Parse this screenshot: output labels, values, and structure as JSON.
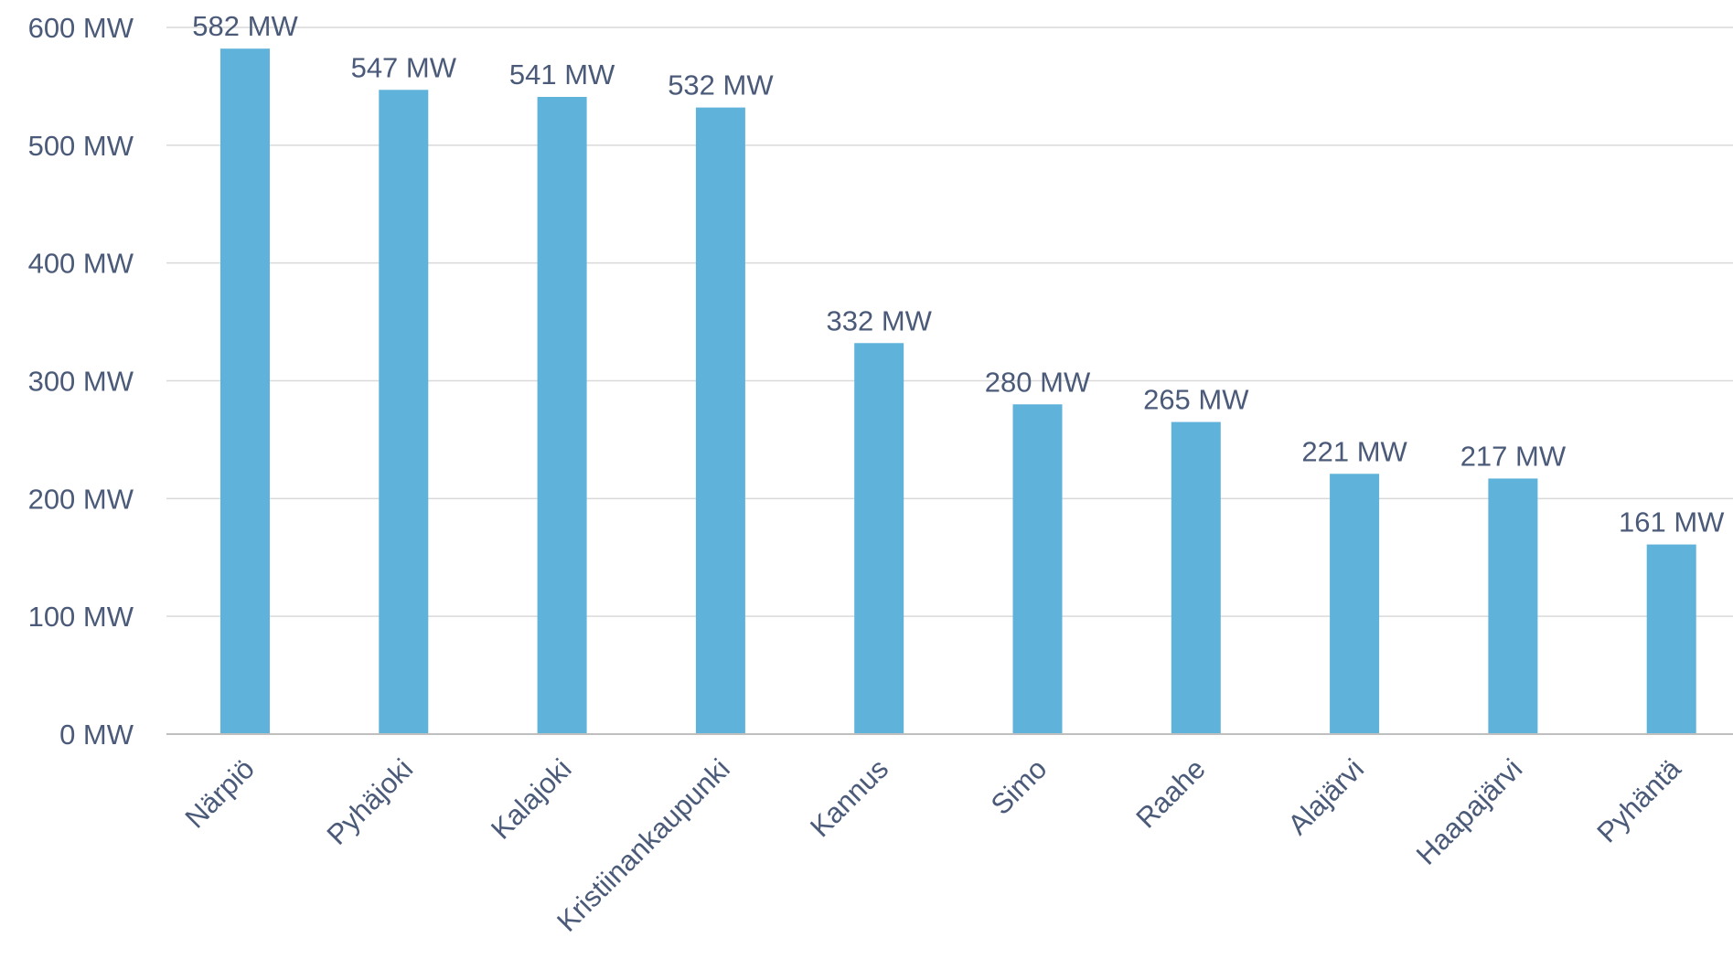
{
  "chart_data": {
    "type": "bar",
    "categories": [
      "Närpiö",
      "Pyhäjoki",
      "Kalajoki",
      "Kristiinankaupunki",
      "Kannus",
      "Simo",
      "Raahe",
      "Alajärvi",
      "Haapajärvi",
      "Pyhäntä"
    ],
    "values": [
      582,
      547,
      541,
      532,
      332,
      280,
      265,
      221,
      217,
      161
    ],
    "value_labels": [
      "582 MW",
      "547 MW",
      "541 MW",
      "532 MW",
      "332 MW",
      "280 MW",
      "265 MW",
      "221 MW",
      "217 MW",
      "161 MW"
    ],
    "y_ticks": [
      0,
      100,
      200,
      300,
      400,
      500,
      600
    ],
    "y_tick_labels": [
      "0 MW",
      "100 MW",
      "200 MW",
      "300 MW",
      "400 MW",
      "500 MW",
      "600 MW"
    ],
    "ylim": [
      0,
      600
    ],
    "grid": true,
    "colors": {
      "bar": "#5fb3da",
      "gridline": "#d9d9d9",
      "axis_line": "#bfbfbf",
      "text": "#4a5a78"
    }
  }
}
